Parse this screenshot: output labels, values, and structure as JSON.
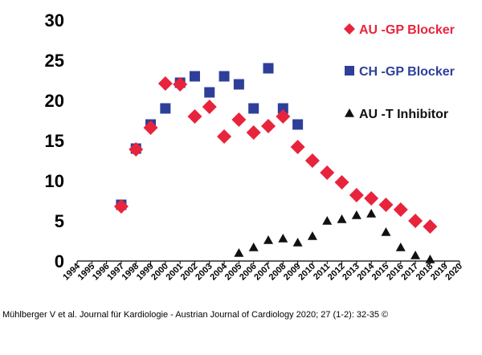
{
  "chart_data": {
    "type": "scatter",
    "title": "",
    "xlabel": "",
    "ylabel": "",
    "xlim": [
      1994,
      2020
    ],
    "ylim": [
      0,
      30
    ],
    "grid": false,
    "legend_position": "top-right",
    "x_ticks": [
      "1994",
      "1995",
      "1996",
      "1997",
      "1998",
      "1999",
      "2000",
      "2001",
      "2002",
      "2003",
      "2004",
      "2005",
      "2006",
      "2007",
      "2008",
      "2009",
      "2010",
      "2011",
      "2012",
      "2013",
      "2014",
      "2015",
      "2016",
      "2017",
      "2018",
      "2019",
      "2020"
    ],
    "y_ticks": [
      "0",
      "5",
      "10",
      "15",
      "20",
      "25",
      "30"
    ],
    "series": [
      {
        "name": "AU -GP Blocker",
        "marker": "diamond",
        "color": "#e8243c",
        "x": [
          1997,
          1998,
          1999,
          2000,
          2001,
          2002,
          2003,
          2004,
          2005,
          2006,
          2007,
          2008,
          2009,
          2010,
          2011,
          2012,
          2013,
          2014,
          2015,
          2016,
          2017,
          2018
        ],
        "y": [
          6.8,
          13.9,
          16.6,
          22.1,
          22.0,
          18.0,
          19.2,
          15.5,
          17.6,
          16.0,
          16.8,
          18.0,
          14.2,
          12.5,
          11.0,
          9.8,
          8.2,
          7.8,
          7.0,
          6.4,
          5.0,
          4.3
        ]
      },
      {
        "name": "CH -GP Blocker",
        "marker": "square",
        "color": "#2e3f9a",
        "x": [
          1997,
          1998,
          1999,
          2000,
          2001,
          2002,
          2003,
          2004,
          2005,
          2006,
          2007,
          2008,
          2009
        ],
        "y": [
          7.0,
          14.0,
          17.0,
          19.0,
          22.2,
          23.0,
          21.0,
          23.0,
          22.0,
          19.0,
          24.0,
          19.0,
          17.0
        ]
      },
      {
        "name": "AU -T Inhibitor",
        "marker": "triangle",
        "color": "#111111",
        "x": [
          2005,
          2006,
          2007,
          2008,
          2009,
          2010,
          2011,
          2012,
          2013,
          2014,
          2015,
          2016,
          2017,
          2018
        ],
        "y": [
          1.0,
          1.7,
          2.6,
          2.8,
          2.3,
          3.1,
          5.0,
          5.2,
          5.7,
          5.9,
          3.6,
          1.7,
          0.7,
          0.2
        ]
      }
    ]
  },
  "credit": "Mühlberger V et al. Journal für Kardiologie - Austrian Journal of Cardiology 2020; 27 (1-2): 32-35 ©"
}
